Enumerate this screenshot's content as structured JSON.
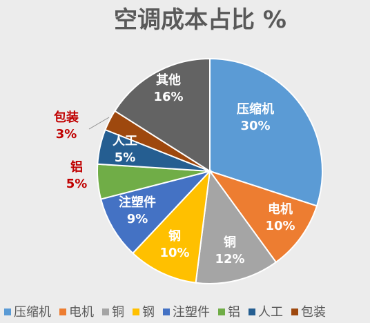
{
  "chart_data": {
    "type": "pie",
    "title": "空调成本占比 %",
    "categories": [
      "压缩机",
      "电机",
      "铜",
      "钢",
      "注塑件",
      "铝",
      "人工",
      "包装",
      "其他"
    ],
    "values": [
      30,
      10,
      12,
      10,
      9,
      5,
      5,
      3,
      16
    ],
    "value_labels": [
      "30%",
      "10%",
      "12%",
      "10%",
      "9%",
      "5%",
      "5%",
      "3%",
      "16%"
    ],
    "colors": [
      "#5b9bd5",
      "#ed7d31",
      "#a5a5a5",
      "#ffc000",
      "#4472c4",
      "#70ad47",
      "#255e91",
      "#9e480e",
      "#636363"
    ],
    "legend": {
      "position": "bottom",
      "entries": [
        "压缩机",
        "电机",
        "铜",
        "钢",
        "注塑件",
        "铝",
        "人工",
        "包装"
      ]
    },
    "grid": false
  }
}
